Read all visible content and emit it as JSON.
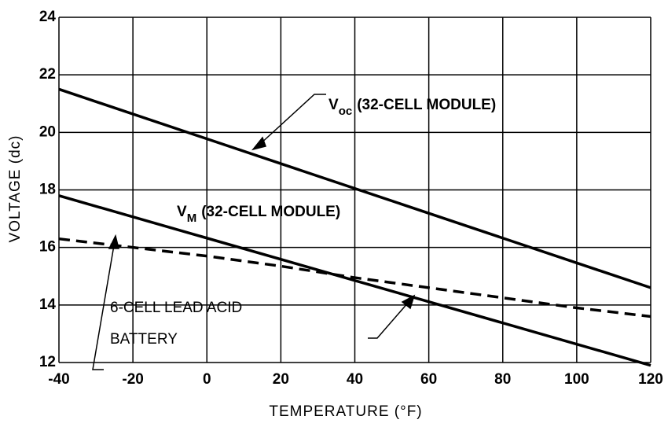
{
  "chart_data": {
    "type": "line",
    "xlabel": "TEMPERATURE (°F)",
    "ylabel": "VOLTAGE (dc)",
    "xlim": [
      -40,
      120
    ],
    "xticks": [
      -40,
      -20,
      0,
      20,
      40,
      60,
      80,
      100,
      120
    ],
    "ylim": [
      12,
      24
    ],
    "yticks": [
      12,
      14,
      16,
      18,
      20,
      22,
      24
    ],
    "grid": true,
    "series": [
      {
        "color": "#000000",
        "dashed": false,
        "x": [
          -40,
          120
        ],
        "values": [
          21.5,
          14.6
        ]
      },
      {
        "color": "#000000",
        "dashed": false,
        "x": [
          -40,
          120
        ],
        "values": [
          17.8,
          11.9
        ]
      },
      {
        "color": "#000000",
        "dashed": true,
        "x": [
          -40,
          -20,
          0,
          20,
          40,
          60,
          80,
          100,
          120
        ],
        "values": [
          16.3,
          16.0,
          15.7,
          15.35,
          14.95,
          14.6,
          14.25,
          13.9,
          13.6
        ]
      }
    ],
    "annotations": [
      {
        "main": "V",
        "sub": "oc",
        "rest": "(32-CELL MODULE)"
      },
      {
        "main": "V",
        "sub": "M",
        "rest": "(32-CELL MODULE)"
      },
      {
        "lines": [
          "6-CELL LEAD ACID",
          "BATTERY"
        ]
      }
    ]
  }
}
